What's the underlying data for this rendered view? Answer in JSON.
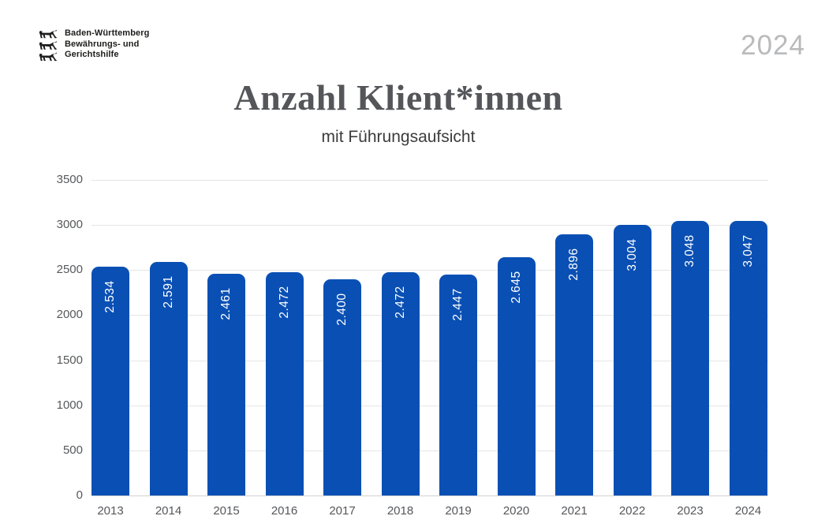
{
  "header": {
    "logo": {
      "lines": [
        "Baden-Württemberg",
        "Bewährungs- und",
        "Gerichtshilfe"
      ]
    },
    "year_badge": "2024"
  },
  "title": "Anzahl Klient*innen",
  "subtitle": "mit Führungsaufsicht",
  "chart_data": {
    "type": "bar",
    "title": "Anzahl Klient*innen",
    "subtitle": "mit Führungsaufsicht",
    "categories": [
      "2013",
      "2014",
      "2015",
      "2016",
      "2017",
      "2018",
      "2019",
      "2020",
      "2021",
      "2022",
      "2023",
      "2024"
    ],
    "values": [
      2534,
      2591,
      2461,
      2472,
      2400,
      2472,
      2447,
      2645,
      2896,
      3004,
      3048,
      3047
    ],
    "value_labels": [
      "2.534",
      "2.591",
      "2.461",
      "2.472",
      "2.400",
      "2.472",
      "2.447",
      "2.645",
      "2.896",
      "3.004",
      "3.048",
      "3.047"
    ],
    "xlabel": "",
    "ylabel": "",
    "ylim": [
      0,
      3500
    ],
    "y_ticks": [
      0,
      500,
      1000,
      1500,
      2000,
      2500,
      3000,
      3500
    ],
    "grid": true,
    "legend": false,
    "bar_color": "#0a50b4",
    "value_label_color": "#ffffff"
  },
  "colors": {
    "bar": "#0a50b4",
    "title": "#55565a",
    "subtitle": "#3c3c3c",
    "year_badge": "#b9babc",
    "gridline": "#e5e5e5",
    "axis_line": "#d2d2d2",
    "tick_label": "#56585a"
  }
}
